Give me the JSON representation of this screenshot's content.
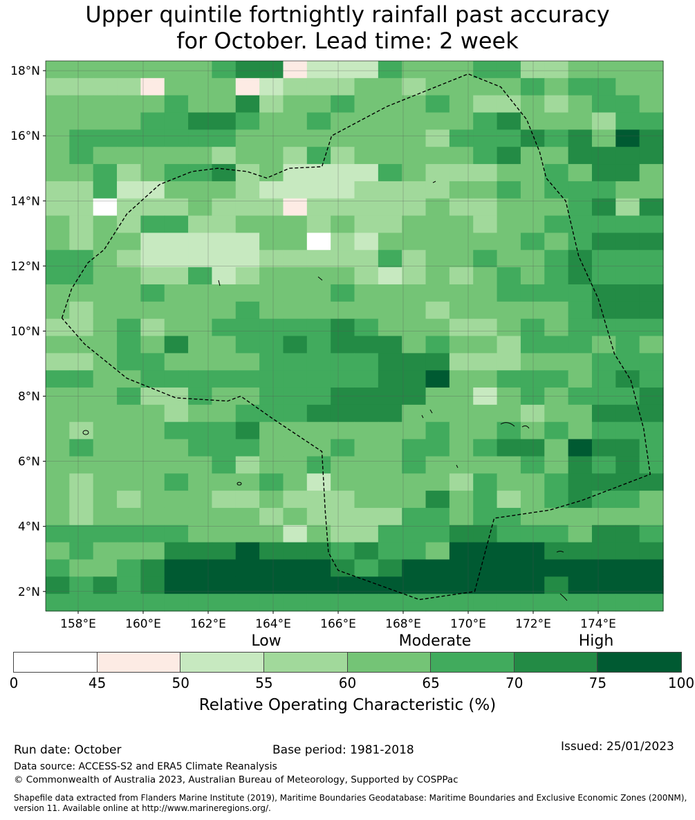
{
  "title": {
    "line1": "Upper quintile fortnightly rainfall past accuracy",
    "line2": "for October. Lead time: 2 week"
  },
  "map": {
    "lat_labels": [
      "18°N",
      "16°N",
      "14°N",
      "12°N",
      "10°N",
      "8°N",
      "6°N",
      "4°N",
      "2°N"
    ],
    "lat_values": [
      18,
      16,
      14,
      12,
      10,
      8,
      6,
      4,
      2
    ],
    "lon_labels": [
      "158°E",
      "160°E",
      "162°E",
      "164°E",
      "166°E",
      "168°E",
      "170°E",
      "172°E",
      "174°E"
    ],
    "lon_values": [
      158,
      160,
      162,
      164,
      166,
      168,
      170,
      172,
      174
    ],
    "lon_range": [
      157.0,
      176.0
    ],
    "lat_range": [
      1.4,
      18.3
    ],
    "boundary_outline": [
      [
        157.5,
        10.4
      ],
      [
        157.8,
        11.3
      ],
      [
        158.3,
        12.1
      ],
      [
        158.8,
        12.5
      ],
      [
        159.5,
        13.6
      ],
      [
        160.5,
        14.5
      ],
      [
        161.5,
        14.9
      ],
      [
        162.3,
        15.0
      ],
      [
        163.2,
        14.9
      ],
      [
        163.8,
        14.7
      ],
      [
        164.5,
        15.0
      ],
      [
        165.5,
        15.05
      ],
      [
        165.8,
        16.0
      ],
      [
        167.5,
        16.9
      ],
      [
        170.0,
        17.9
      ],
      [
        171.0,
        17.5
      ],
      [
        171.8,
        16.5
      ],
      [
        172.2,
        15.5
      ],
      [
        172.4,
        14.7
      ],
      [
        173.0,
        14.0
      ],
      [
        173.4,
        12.3
      ],
      [
        174.0,
        11.0
      ],
      [
        174.5,
        9.3
      ],
      [
        175.0,
        8.5
      ],
      [
        175.4,
        7.0
      ],
      [
        175.6,
        5.6
      ],
      [
        173.5,
        4.8
      ],
      [
        172.5,
        4.5
      ],
      [
        170.8,
        4.25
      ],
      [
        170.2,
        2.0
      ],
      [
        168.5,
        1.75
      ],
      [
        166.0,
        2.65
      ],
      [
        165.7,
        3.2
      ],
      [
        165.6,
        4.5
      ],
      [
        165.5,
        6.3
      ],
      [
        164.0,
        7.3
      ],
      [
        163.0,
        8.0
      ],
      [
        162.6,
        7.85
      ],
      [
        161.0,
        7.95
      ],
      [
        159.5,
        8.55
      ],
      [
        158.2,
        9.6
      ],
      [
        157.5,
        10.4
      ]
    ],
    "grid_resolution_deg": 0.8333,
    "grid_rows": [
      "44444445661222544455334444",
      "33331444123334434444545544",
      "44444544634454445433434554",
      "44445566544544444456444355",
      "45555555444444443555656476",
      "45444443443534444456446666",
      "44534556342222543334454664",
      "33522444322223333445455544",
      "33033343331333334334445636",
      "43435533444343344434455555",
      "43442222244032444444545666",
      "55432222233333534454456555",
      "55443352344443234345456555",
      "44445444444454444445555666",
      "43444444544444443444445666",
      "33453445555565444334545555",
      "44454644556566645443555454",
      "33455444455555666333444555",
      "55445555555555667445554565",
      "44453354455566664424545556",
      "44444344555666644444344666",
      "43444555644444445445454555",
      "45444455544454455456647665",
      "44444445344544454444546565",
      "43444544454244444354456666",
      "43434443343334446453456554",
      "43444444434333355455444444",
      "55555544442433555665554665",
      "45444666766656554777766666",
      "54456777777765677777777777",
      "65656777777777777777767777",
      "55555555555555555555555555"
    ]
  },
  "legend": {
    "category_labels": [
      "Low",
      "Moderate",
      "High"
    ],
    "tick_labels": [
      "0",
      "45",
      "50",
      "55",
      "60",
      "65",
      "70",
      "75",
      "100"
    ],
    "bins": [
      {
        "from": 0,
        "to": 45,
        "color": "#ffffff"
      },
      {
        "from": 45,
        "to": 50,
        "color": "#fdebe4"
      },
      {
        "from": 50,
        "to": 55,
        "color": "#c7e9c0"
      },
      {
        "from": 55,
        "to": 60,
        "color": "#a1d99b"
      },
      {
        "from": 60,
        "to": 65,
        "color": "#74c476"
      },
      {
        "from": 65,
        "to": 70,
        "color": "#41ab5d"
      },
      {
        "from": 70,
        "to": 75,
        "color": "#238b45"
      },
      {
        "from": 75,
        "to": 100,
        "color": "#005a32"
      }
    ],
    "axis_label": "Relative Operating Characteristic (%)"
  },
  "footer": {
    "run_date": "Run date: October",
    "base_period": "Base period: 1981-2018",
    "issued": "Issued: 25/01/2023",
    "data_source": "Data source: ACCESS-S2 and ERA5 Climate Reanalysis",
    "copyright": "© Commonwealth of Australia 2023, Australian Bureau of Meteorology, Supported by COSPPac",
    "shapefile_note": "Shapefile data extracted from Flanders Marine Institute (2019), Maritime Boundaries Geodatabase: Maritime Boundaries and Exclusive Economic Zones (200NM), version 11. Available online at http://www.marineregions.org/."
  }
}
